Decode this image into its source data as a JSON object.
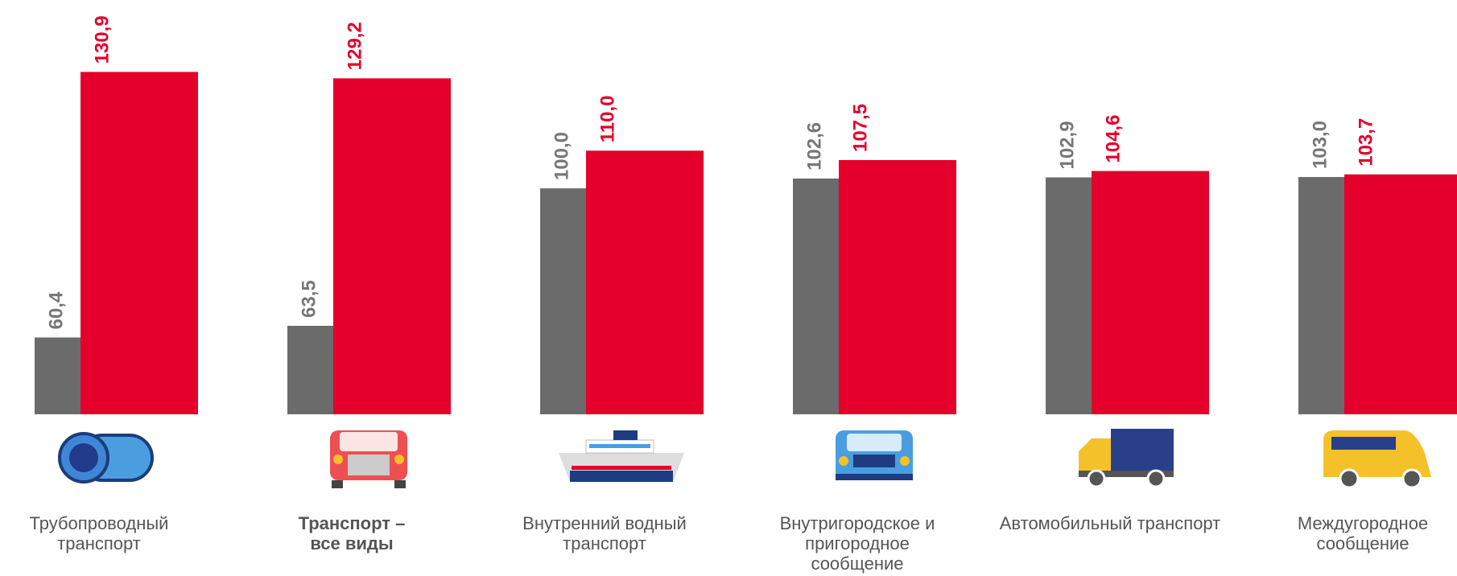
{
  "chart_data": {
    "type": "bar",
    "categories": [
      "Трубопроводный\nтранспорт",
      "Транспорт –\nвсе виды",
      "Внутренний водный\nтранспорт",
      "Внутригородское и\nпригородное\nсообщение",
      "Автомобильный транспорт",
      "Междугородное\nсообщение"
    ],
    "series": [
      {
        "color": "#6b6b6b",
        "values": [
          60.4,
          63.5,
          100.0,
          102.6,
          102.9,
          103.0
        ],
        "value_labels": [
          "60,4",
          "63,5",
          "100,0",
          "102,6",
          "102,9",
          "103,0"
        ]
      },
      {
        "color": "#e4002b",
        "values": [
          130.9,
          129.2,
          110.0,
          107.5,
          104.6,
          103.7
        ],
        "value_labels": [
          "130,9",
          "129,2",
          "110,0",
          "107,5",
          "104,6",
          "103,7"
        ]
      }
    ],
    "ylim": [
      40,
      150
    ]
  }
}
